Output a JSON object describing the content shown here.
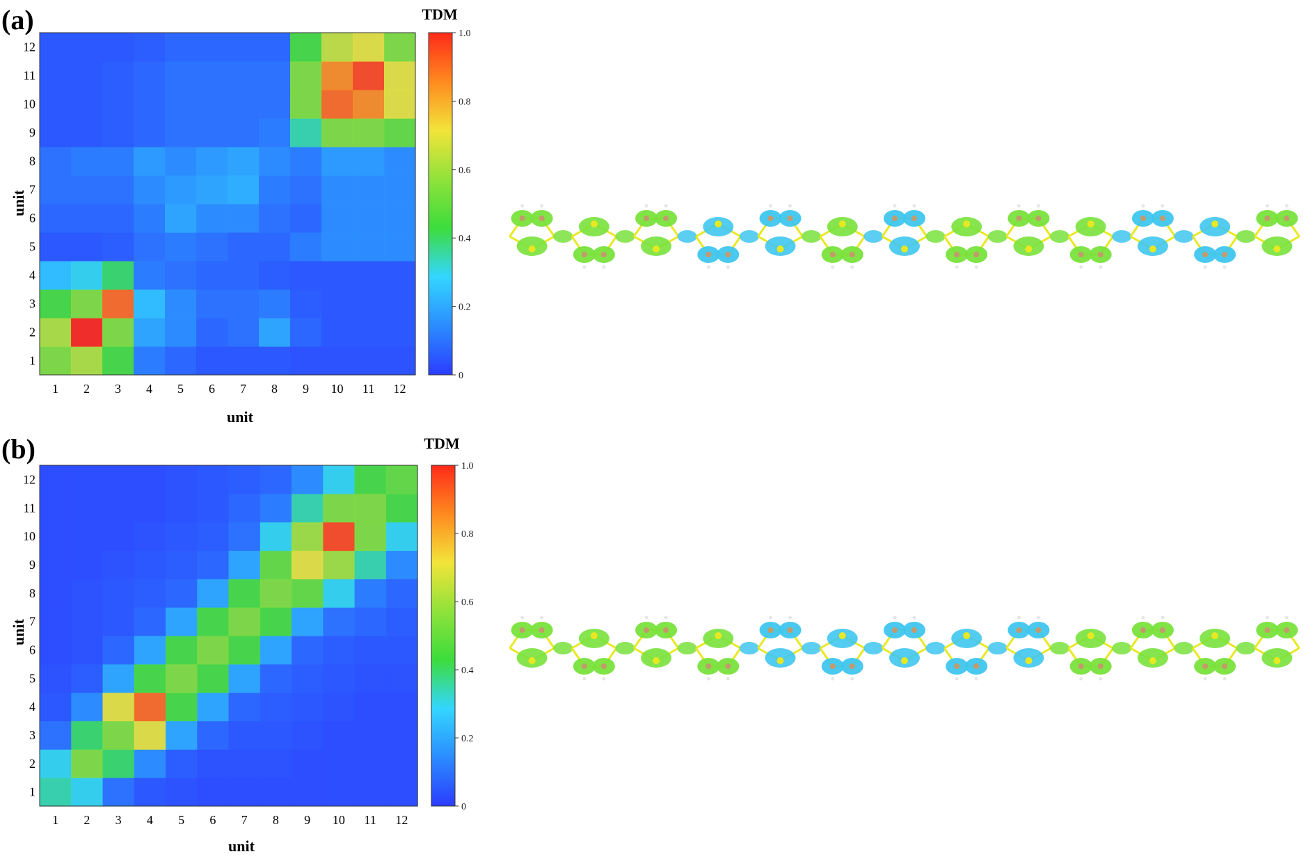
{
  "colors": {
    "background": "#ffffff",
    "heatmap_base": "#3a5cff",
    "scale": [
      "#2b3cff",
      "#2b8cff",
      "#33d6ff",
      "#3ddc3d",
      "#8fe23a",
      "#f2e43a",
      "#ff8a1f",
      "#ff2a1a"
    ],
    "isosurface_green": "#79e23c",
    "isosurface_cyan": "#3fc6ee",
    "atom_carbon": "#c49a6c",
    "atom_sulfur": "#e8e822",
    "atom_hydrogen": "#e6e6e6",
    "bond": "#b8b8b8"
  },
  "chart_data": [
    {
      "type": "heatmap",
      "panel_label": "(a)",
      "title": "TDM",
      "xlabel": "unit",
      "ylabel": "unit",
      "x_ticks": [
        "1",
        "2",
        "3",
        "4",
        "5",
        "6",
        "7",
        "8",
        "9",
        "10",
        "11",
        "12"
      ],
      "y_ticks": [
        "1",
        "2",
        "3",
        "4",
        "5",
        "6",
        "7",
        "8",
        "9",
        "10",
        "11",
        "12"
      ],
      "colorbar": {
        "min": 0,
        "max": 1.0,
        "ticks": [
          "0",
          "0.2",
          "0.4",
          "0.6",
          "0.8",
          "1.0"
        ]
      },
      "values": [
        [
          0.55,
          0.62,
          0.45,
          0.12,
          0.08,
          0.05,
          0.05,
          0.05,
          0.04,
          0.04,
          0.04,
          0.04
        ],
        [
          0.62,
          1.0,
          0.55,
          0.2,
          0.15,
          0.08,
          0.1,
          0.2,
          0.08,
          0.05,
          0.05,
          0.05
        ],
        [
          0.45,
          0.55,
          0.9,
          0.25,
          0.15,
          0.1,
          0.1,
          0.12,
          0.06,
          0.05,
          0.05,
          0.05
        ],
        [
          0.25,
          0.3,
          0.4,
          0.12,
          0.1,
          0.08,
          0.08,
          0.06,
          0.05,
          0.05,
          0.05,
          0.05
        ],
        [
          0.05,
          0.05,
          0.06,
          0.1,
          0.12,
          0.1,
          0.08,
          0.08,
          0.12,
          0.15,
          0.15,
          0.15
        ],
        [
          0.08,
          0.08,
          0.08,
          0.12,
          0.2,
          0.15,
          0.15,
          0.1,
          0.08,
          0.15,
          0.15,
          0.15
        ],
        [
          0.1,
          0.1,
          0.1,
          0.15,
          0.18,
          0.2,
          0.22,
          0.12,
          0.1,
          0.15,
          0.15,
          0.15
        ],
        [
          0.1,
          0.12,
          0.12,
          0.18,
          0.15,
          0.18,
          0.2,
          0.15,
          0.12,
          0.18,
          0.18,
          0.15
        ],
        [
          0.05,
          0.05,
          0.06,
          0.08,
          0.1,
          0.1,
          0.1,
          0.12,
          0.35,
          0.55,
          0.55,
          0.5
        ],
        [
          0.05,
          0.05,
          0.06,
          0.08,
          0.1,
          0.1,
          0.1,
          0.1,
          0.55,
          0.9,
          0.85,
          0.7
        ],
        [
          0.05,
          0.05,
          0.06,
          0.08,
          0.1,
          0.1,
          0.1,
          0.1,
          0.55,
          0.85,
          0.95,
          0.7
        ],
        [
          0.05,
          0.05,
          0.05,
          0.06,
          0.08,
          0.08,
          0.08,
          0.08,
          0.45,
          0.65,
          0.7,
          0.55
        ]
      ]
    },
    {
      "type": "heatmap",
      "panel_label": "(b)",
      "title": "TDM",
      "xlabel": "unit",
      "ylabel": "unit",
      "x_ticks": [
        "1",
        "2",
        "3",
        "4",
        "5",
        "6",
        "7",
        "8",
        "9",
        "10",
        "11",
        "12"
      ],
      "y_ticks": [
        "1",
        "2",
        "3",
        "4",
        "5",
        "6",
        "7",
        "8",
        "9",
        "10",
        "11",
        "12"
      ],
      "colorbar": {
        "min": 0,
        "max": 1.0,
        "ticks": [
          "0",
          "0.2",
          "0.4",
          "0.6",
          "0.8",
          "1.0"
        ]
      },
      "values": [
        [
          0.35,
          0.3,
          0.1,
          0.05,
          0.04,
          0.03,
          0.03,
          0.03,
          0.03,
          0.03,
          0.03,
          0.03
        ],
        [
          0.3,
          0.55,
          0.4,
          0.15,
          0.06,
          0.04,
          0.04,
          0.04,
          0.03,
          0.03,
          0.03,
          0.03
        ],
        [
          0.1,
          0.4,
          0.55,
          0.7,
          0.2,
          0.08,
          0.05,
          0.05,
          0.04,
          0.03,
          0.03,
          0.03
        ],
        [
          0.05,
          0.15,
          0.7,
          0.9,
          0.45,
          0.2,
          0.08,
          0.06,
          0.05,
          0.04,
          0.03,
          0.03
        ],
        [
          0.04,
          0.06,
          0.2,
          0.45,
          0.55,
          0.45,
          0.2,
          0.08,
          0.06,
          0.05,
          0.04,
          0.04
        ],
        [
          0.03,
          0.04,
          0.08,
          0.2,
          0.45,
          0.55,
          0.45,
          0.2,
          0.08,
          0.06,
          0.05,
          0.05
        ],
        [
          0.03,
          0.04,
          0.05,
          0.08,
          0.2,
          0.45,
          0.55,
          0.45,
          0.2,
          0.1,
          0.08,
          0.06
        ],
        [
          0.03,
          0.04,
          0.05,
          0.06,
          0.08,
          0.2,
          0.45,
          0.55,
          0.5,
          0.3,
          0.12,
          0.08
        ],
        [
          0.03,
          0.03,
          0.04,
          0.05,
          0.06,
          0.08,
          0.2,
          0.5,
          0.7,
          0.6,
          0.35,
          0.15
        ],
        [
          0.03,
          0.03,
          0.03,
          0.04,
          0.05,
          0.06,
          0.1,
          0.3,
          0.6,
          0.95,
          0.55,
          0.3
        ],
        [
          0.03,
          0.03,
          0.03,
          0.03,
          0.04,
          0.05,
          0.08,
          0.12,
          0.35,
          0.55,
          0.55,
          0.45
        ],
        [
          0.03,
          0.03,
          0.03,
          0.03,
          0.04,
          0.05,
          0.06,
          0.08,
          0.15,
          0.3,
          0.45,
          0.5
        ]
      ]
    }
  ],
  "molecules": [
    {
      "panel": "(a)",
      "lobe_pattern": [
        "g",
        "g",
        "g",
        "c",
        "c",
        "g",
        "c",
        "g",
        "g",
        "g",
        "c",
        "c",
        "g"
      ]
    },
    {
      "panel": "(b)",
      "lobe_pattern": [
        "g",
        "g",
        "g",
        "g",
        "c",
        "c",
        "c",
        "c",
        "c",
        "g",
        "g",
        "g",
        "g"
      ]
    }
  ]
}
